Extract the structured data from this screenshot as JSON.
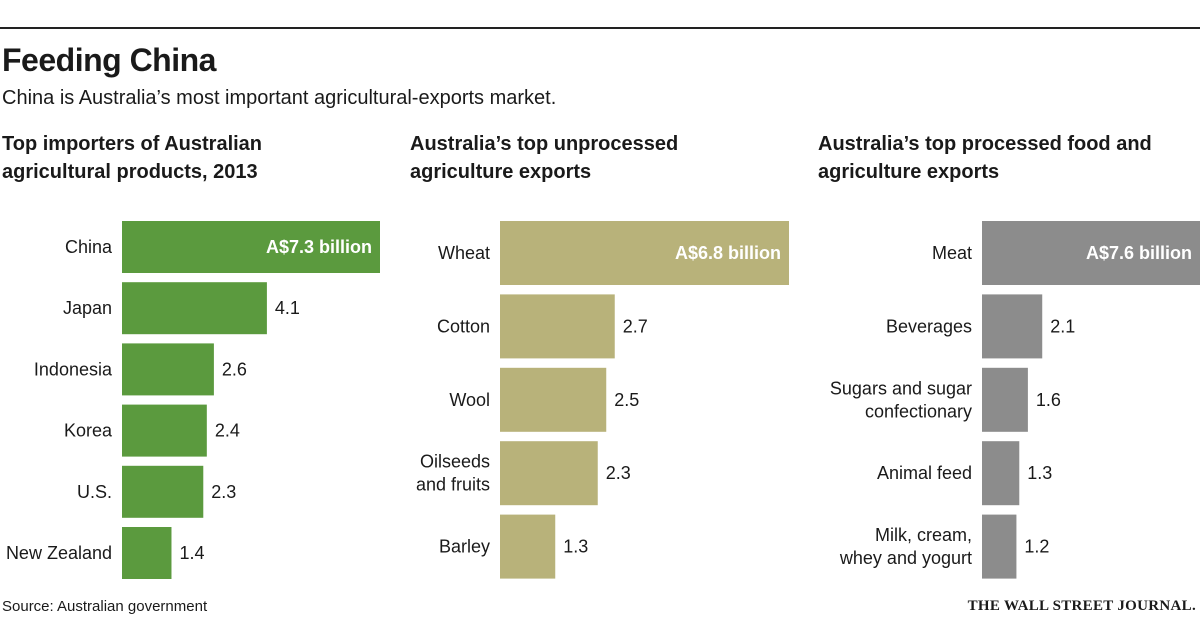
{
  "header": {
    "title": "Feeding China",
    "subtitle": "China is Australia’s most important agricultural-exports market."
  },
  "footer": {
    "source": "Source: Australian government",
    "brand": "THE WALL STREET JOURNAL."
  },
  "colors": {
    "green": "#5b9a3e",
    "tan": "#b8b27a",
    "gray": "#8c8c8c",
    "inside_label": "#ffffff",
    "text": "#1a1a1a"
  },
  "chart_data": [
    {
      "type": "bar",
      "orientation": "horizontal",
      "title": "Top importers of Australian\nagricultural products, 2013",
      "categories": [
        "China",
        "Japan",
        "Indonesia",
        "Korea",
        "U.S.",
        "New Zealand"
      ],
      "values": [
        7.3,
        4.1,
        2.6,
        2.4,
        2.3,
        1.4
      ],
      "value_labels": [
        "A$7.3 billion",
        "4.1",
        "2.6",
        "2.4",
        "2.3",
        "1.4"
      ],
      "unit": "A$ billion",
      "color": "#5b9a3e"
    },
    {
      "type": "bar",
      "orientation": "horizontal",
      "title": "Australia’s top unprocessed\nagriculture exports",
      "categories": [
        "Wheat",
        "Cotton",
        "Wool",
        "Oilseeds\nand fruits",
        "Barley"
      ],
      "values": [
        6.8,
        2.7,
        2.5,
        2.3,
        1.3
      ],
      "value_labels": [
        "A$6.8 billion",
        "2.7",
        "2.5",
        "2.3",
        "1.3"
      ],
      "unit": "A$ billion",
      "color": "#b8b27a"
    },
    {
      "type": "bar",
      "orientation": "horizontal",
      "title": "Australia’s top processed food and\nagriculture exports",
      "categories": [
        "Meat",
        "Beverages",
        "Sugars and sugar\nconfectionary",
        "Animal feed",
        "Milk, cream,\nwhey and yogurt"
      ],
      "values": [
        7.6,
        2.1,
        1.6,
        1.3,
        1.2
      ],
      "value_labels": [
        "A$7.6 billion",
        "2.1",
        "1.6",
        "1.3",
        "1.2"
      ],
      "unit": "A$ billion",
      "color": "#8c8c8c"
    }
  ]
}
